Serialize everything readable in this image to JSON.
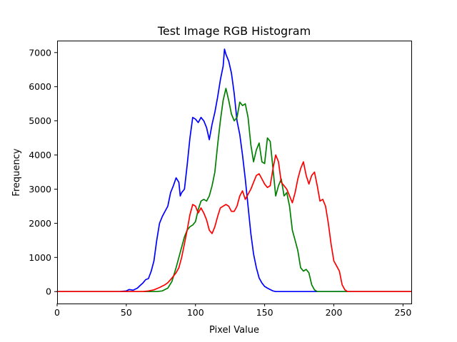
{
  "chart_data": {
    "type": "line",
    "title": "Test Image RGB Histogram",
    "xlabel": "Pixel Value",
    "ylabel": "Frequency",
    "xlim": [
      0,
      256
    ],
    "ylim": [
      -350,
      7350
    ],
    "grid": false,
    "xticks": [
      0,
      50,
      100,
      150,
      200,
      250
    ],
    "yticks": [
      0,
      1000,
      2000,
      3000,
      4000,
      5000,
      6000,
      7000
    ],
    "series": [
      {
        "color": "#0000ff",
        "points": [
          [
            0,
            0
          ],
          [
            45,
            0
          ],
          [
            50,
            20
          ],
          [
            52,
            60
          ],
          [
            55,
            40
          ],
          [
            58,
            100
          ],
          [
            60,
            180
          ],
          [
            62,
            250
          ],
          [
            64,
            350
          ],
          [
            66,
            380
          ],
          [
            68,
            600
          ],
          [
            70,
            900
          ],
          [
            72,
            1500
          ],
          [
            74,
            2000
          ],
          [
            76,
            2200
          ],
          [
            78,
            2350
          ],
          [
            80,
            2500
          ],
          [
            82,
            2900
          ],
          [
            84,
            3100
          ],
          [
            86,
            3330
          ],
          [
            88,
            3200
          ],
          [
            89,
            2800
          ],
          [
            90,
            2900
          ],
          [
            92,
            3000
          ],
          [
            94,
            3700
          ],
          [
            96,
            4500
          ],
          [
            98,
            5100
          ],
          [
            100,
            5050
          ],
          [
            102,
            4950
          ],
          [
            104,
            5100
          ],
          [
            106,
            5000
          ],
          [
            108,
            4800
          ],
          [
            110,
            4450
          ],
          [
            112,
            4900
          ],
          [
            114,
            5250
          ],
          [
            116,
            5700
          ],
          [
            118,
            6200
          ],
          [
            120,
            6600
          ],
          [
            121,
            7100
          ],
          [
            122,
            6950
          ],
          [
            124,
            6750
          ],
          [
            126,
            6400
          ],
          [
            128,
            5800
          ],
          [
            130,
            5000
          ],
          [
            132,
            4600
          ],
          [
            134,
            4000
          ],
          [
            136,
            3300
          ],
          [
            138,
            2500
          ],
          [
            140,
            1700
          ],
          [
            142,
            1100
          ],
          [
            144,
            700
          ],
          [
            146,
            400
          ],
          [
            148,
            250
          ],
          [
            150,
            150
          ],
          [
            152,
            100
          ],
          [
            154,
            60
          ],
          [
            156,
            20
          ],
          [
            158,
            0
          ],
          [
            256,
            0
          ]
        ]
      },
      {
        "color": "#008000",
        "points": [
          [
            0,
            0
          ],
          [
            65,
            0
          ],
          [
            72,
            0
          ],
          [
            76,
            20
          ],
          [
            80,
            100
          ],
          [
            83,
            300
          ],
          [
            86,
            700
          ],
          [
            88,
            1000
          ],
          [
            90,
            1300
          ],
          [
            92,
            1600
          ],
          [
            94,
            1800
          ],
          [
            96,
            1900
          ],
          [
            98,
            1950
          ],
          [
            100,
            2050
          ],
          [
            102,
            2400
          ],
          [
            104,
            2650
          ],
          [
            106,
            2700
          ],
          [
            108,
            2650
          ],
          [
            110,
            2800
          ],
          [
            112,
            3100
          ],
          [
            114,
            3500
          ],
          [
            116,
            4300
          ],
          [
            118,
            5000
          ],
          [
            120,
            5600
          ],
          [
            122,
            5950
          ],
          [
            124,
            5600
          ],
          [
            126,
            5200
          ],
          [
            128,
            5000
          ],
          [
            130,
            5100
          ],
          [
            132,
            5550
          ],
          [
            134,
            5450
          ],
          [
            136,
            5500
          ],
          [
            138,
            5100
          ],
          [
            140,
            4300
          ],
          [
            142,
            3800
          ],
          [
            144,
            4150
          ],
          [
            146,
            4350
          ],
          [
            148,
            3800
          ],
          [
            150,
            3750
          ],
          [
            152,
            4500
          ],
          [
            154,
            4400
          ],
          [
            156,
            3600
          ],
          [
            158,
            2800
          ],
          [
            160,
            3100
          ],
          [
            162,
            3300
          ],
          [
            164,
            2800
          ],
          [
            166,
            2900
          ],
          [
            168,
            2500
          ],
          [
            170,
            1800
          ],
          [
            172,
            1500
          ],
          [
            174,
            1200
          ],
          [
            176,
            700
          ],
          [
            178,
            600
          ],
          [
            180,
            650
          ],
          [
            182,
            550
          ],
          [
            184,
            200
          ],
          [
            186,
            50
          ],
          [
            188,
            0
          ],
          [
            256,
            0
          ]
        ]
      },
      {
        "color": "#ff0000",
        "points": [
          [
            0,
            0
          ],
          [
            55,
            0
          ],
          [
            62,
            0
          ],
          [
            66,
            20
          ],
          [
            70,
            50
          ],
          [
            74,
            120
          ],
          [
            78,
            200
          ],
          [
            80,
            260
          ],
          [
            82,
            350
          ],
          [
            84,
            450
          ],
          [
            86,
            550
          ],
          [
            88,
            700
          ],
          [
            90,
            1000
          ],
          [
            92,
            1400
          ],
          [
            94,
            1800
          ],
          [
            96,
            2250
          ],
          [
            98,
            2550
          ],
          [
            100,
            2500
          ],
          [
            102,
            2300
          ],
          [
            104,
            2450
          ],
          [
            106,
            2300
          ],
          [
            108,
            2100
          ],
          [
            110,
            1800
          ],
          [
            112,
            1700
          ],
          [
            114,
            1900
          ],
          [
            116,
            2200
          ],
          [
            118,
            2450
          ],
          [
            120,
            2500
          ],
          [
            122,
            2550
          ],
          [
            124,
            2500
          ],
          [
            126,
            2350
          ],
          [
            128,
            2350
          ],
          [
            130,
            2500
          ],
          [
            132,
            2800
          ],
          [
            134,
            2950
          ],
          [
            136,
            2700
          ],
          [
            138,
            2850
          ],
          [
            140,
            3000
          ],
          [
            142,
            3200
          ],
          [
            144,
            3400
          ],
          [
            146,
            3450
          ],
          [
            148,
            3300
          ],
          [
            150,
            3150
          ],
          [
            152,
            3050
          ],
          [
            154,
            3100
          ],
          [
            156,
            3600
          ],
          [
            158,
            4000
          ],
          [
            160,
            3800
          ],
          [
            162,
            3200
          ],
          [
            164,
            3100
          ],
          [
            166,
            3000
          ],
          [
            168,
            2800
          ],
          [
            170,
            2600
          ],
          [
            172,
            2900
          ],
          [
            174,
            3300
          ],
          [
            176,
            3600
          ],
          [
            178,
            3800
          ],
          [
            180,
            3400
          ],
          [
            182,
            3150
          ],
          [
            184,
            3400
          ],
          [
            186,
            3500
          ],
          [
            188,
            3100
          ],
          [
            190,
            2650
          ],
          [
            192,
            2700
          ],
          [
            194,
            2500
          ],
          [
            196,
            2000
          ],
          [
            198,
            1400
          ],
          [
            200,
            900
          ],
          [
            202,
            750
          ],
          [
            204,
            600
          ],
          [
            206,
            200
          ],
          [
            208,
            50
          ],
          [
            210,
            0
          ],
          [
            256,
            0
          ]
        ]
      }
    ]
  }
}
